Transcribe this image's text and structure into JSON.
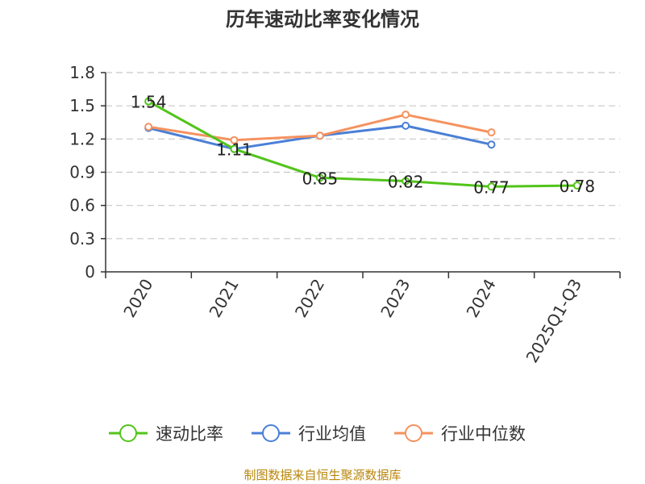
{
  "chart_data": {
    "type": "line",
    "title": "历年速动比率变化情况",
    "categories": [
      "2020",
      "2021",
      "2022",
      "2023",
      "2024",
      "2025Q1-Q3"
    ],
    "ylim": [
      0,
      1.8
    ],
    "yticks": [
      "0",
      "0.3",
      "0.6",
      "0.9",
      "1.2",
      "1.5",
      "1.8"
    ],
    "grid": true,
    "legend_position": "bottom",
    "series": [
      {
        "name": "速动比率",
        "color": "#52c41a",
        "values": [
          1.54,
          1.11,
          0.85,
          0.82,
          0.77,
          0.78
        ],
        "labels": [
          "1.54",
          "1.11",
          "0.85",
          "0.82",
          "0.77",
          "0.78"
        ]
      },
      {
        "name": "行业均值",
        "color": "#4a7fd6",
        "values": [
          1.3,
          1.11,
          1.23,
          1.32,
          1.15,
          null
        ]
      },
      {
        "name": "行业中位数",
        "color": "#f5925f",
        "values": [
          1.31,
          1.19,
          1.23,
          1.42,
          1.26,
          null
        ]
      }
    ],
    "source": "制图数据来自恒生聚源数据库",
    "source_color": "#b8860b"
  }
}
